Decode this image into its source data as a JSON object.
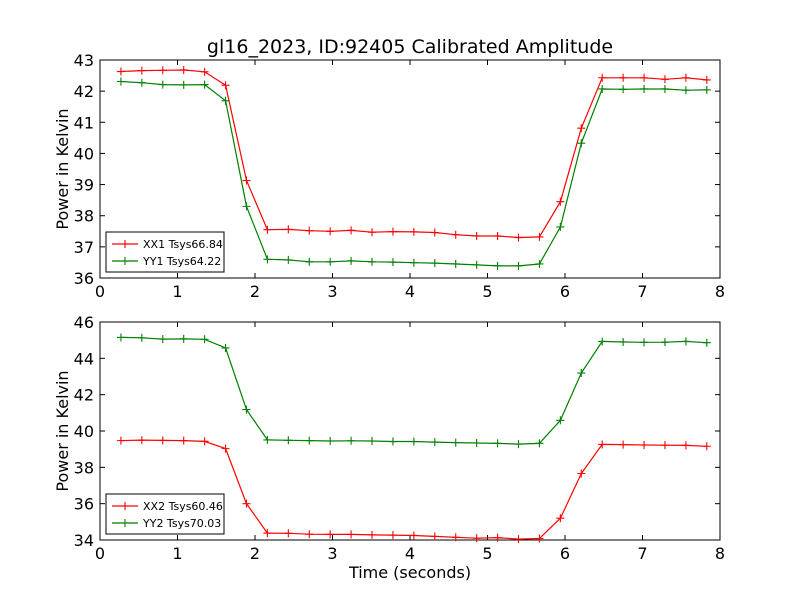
{
  "title": "gl16_2023, ID:92405 Calibrated Amplitude",
  "chart_data": [
    {
      "type": "line",
      "ylabel": "Power in Kelvin",
      "xlabel": "",
      "xlim": [
        0,
        8
      ],
      "ylim": [
        36,
        43
      ],
      "xticks": [
        "0",
        "1",
        "2",
        "3",
        "4",
        "5",
        "6",
        "7",
        "8"
      ],
      "yticks": [
        "36",
        "37",
        "38",
        "39",
        "40",
        "41",
        "42",
        "43"
      ],
      "grid": false,
      "legend_position": "lower-left",
      "x": [
        0.27,
        0.54,
        0.81,
        1.08,
        1.35,
        1.62,
        1.89,
        2.16,
        2.43,
        2.7,
        2.97,
        3.24,
        3.51,
        3.78,
        4.05,
        4.32,
        4.59,
        4.86,
        5.13,
        5.4,
        5.67,
        5.94,
        6.21,
        6.48,
        6.75,
        7.02,
        7.29,
        7.56,
        7.83
      ],
      "series": [
        {
          "name": "XX1 Tsys66.84",
          "color": "#ff0000",
          "values": [
            42.63,
            42.66,
            42.67,
            42.68,
            42.62,
            42.19,
            39.13,
            37.55,
            37.56,
            37.52,
            37.5,
            37.53,
            37.47,
            37.49,
            37.48,
            37.46,
            37.39,
            37.35,
            37.35,
            37.3,
            37.32,
            38.45,
            40.81,
            42.43,
            42.43,
            42.43,
            42.38,
            42.43,
            42.36
          ]
        },
        {
          "name": "YY1 Tsys64.22",
          "color": "#008000",
          "values": [
            42.31,
            42.27,
            42.21,
            42.2,
            42.21,
            41.69,
            38.3,
            36.6,
            36.58,
            36.52,
            36.52,
            36.55,
            36.52,
            36.51,
            36.49,
            36.48,
            36.45,
            36.42,
            36.39,
            36.39,
            36.45,
            37.64,
            40.33,
            42.07,
            42.06,
            42.07,
            42.07,
            42.03,
            42.04
          ]
        }
      ]
    },
    {
      "type": "line",
      "ylabel": "Power in Kelvin",
      "xlabel": "Time (seconds)",
      "xlim": [
        0,
        8
      ],
      "ylim": [
        34,
        46
      ],
      "xticks": [
        "0",
        "1",
        "2",
        "3",
        "4",
        "5",
        "6",
        "7",
        "8"
      ],
      "yticks": [
        "34",
        "36",
        "38",
        "40",
        "42",
        "44",
        "46"
      ],
      "grid": false,
      "legend_position": "lower-left",
      "x": [
        0.27,
        0.54,
        0.81,
        1.08,
        1.35,
        1.62,
        1.89,
        2.16,
        2.43,
        2.7,
        2.97,
        3.24,
        3.51,
        3.78,
        4.05,
        4.32,
        4.59,
        4.86,
        5.13,
        5.4,
        5.67,
        5.94,
        6.21,
        6.48,
        6.75,
        7.02,
        7.29,
        7.56,
        7.83
      ],
      "series": [
        {
          "name": "XX2 Tsys60.46",
          "color": "#ff0000",
          "values": [
            39.47,
            39.5,
            39.48,
            39.47,
            39.43,
            39.03,
            36.0,
            34.38,
            34.37,
            34.32,
            34.31,
            34.31,
            34.28,
            34.27,
            34.25,
            34.2,
            34.15,
            34.1,
            34.13,
            34.05,
            34.08,
            35.2,
            37.66,
            39.26,
            39.25,
            39.23,
            39.22,
            39.21,
            39.16
          ]
        },
        {
          "name": "YY2 Tsys70.03",
          "color": "#008000",
          "values": [
            45.15,
            45.13,
            45.06,
            45.07,
            45.05,
            44.57,
            41.18,
            39.51,
            39.49,
            39.47,
            39.45,
            39.46,
            39.45,
            39.42,
            39.42,
            39.39,
            39.36,
            39.34,
            39.32,
            39.28,
            39.32,
            40.59,
            43.19,
            44.93,
            44.9,
            44.88,
            44.89,
            44.93,
            44.86
          ]
        }
      ]
    }
  ]
}
